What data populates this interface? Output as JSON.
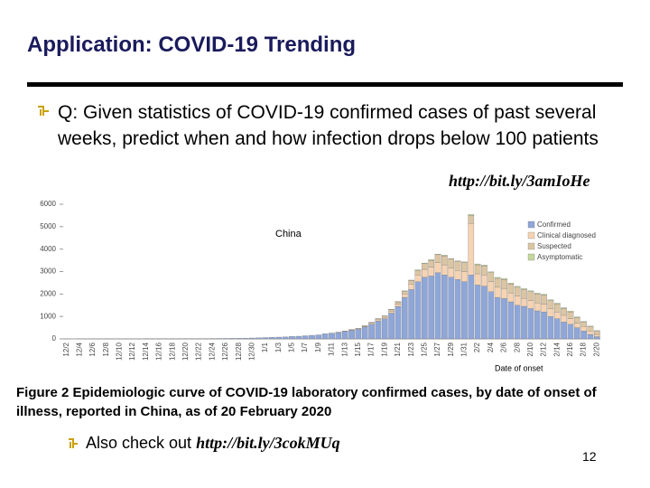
{
  "slide": {
    "title": "Application: COVID-19 Trending",
    "bullet": "Q: Given statistics of COVID-19 confirmed cases of past several weeks, predict when and how infection drops below 100 patients",
    "link1": "http://bit.ly/3amIoHe",
    "caption": "Figure 2 Epidemiologic curve of COVID-19 laboratory confirmed cases, by date of onset of illness, reported in China, as of 20 February 2020",
    "check_prefix": "Also check out",
    "link2": "http://bit.ly/3cokMUq",
    "page_number": "12"
  },
  "chart_data": {
    "type": "bar",
    "stacked": true,
    "title": "China",
    "x_label": "Date of onset",
    "legend": "upper right",
    "categories": [
      "12/2",
      null,
      "12/4",
      null,
      "12/6",
      null,
      "12/8",
      null,
      "12/10",
      null,
      "12/12",
      null,
      "12/14",
      null,
      "12/16",
      null,
      "12/18",
      null,
      "12/20",
      null,
      "12/22",
      null,
      "12/24",
      null,
      "12/26",
      null,
      "12/28",
      null,
      "12/30",
      null,
      "1/1",
      null,
      "1/3",
      null,
      "1/5",
      null,
      "1/7",
      null,
      "1/9",
      null,
      "1/11",
      null,
      "1/13",
      null,
      "1/15",
      null,
      "1/17",
      null,
      "1/19",
      null,
      "1/21",
      null,
      "1/23",
      null,
      "1/25",
      null,
      "1/27",
      null,
      "1/29",
      null,
      "1/31",
      null,
      "2/2",
      null,
      "2/4",
      null,
      "2/6",
      null,
      "2/8",
      null,
      "2/10",
      null,
      "2/12",
      null,
      "2/14",
      null,
      "2/16",
      null,
      "2/18",
      null,
      "2/20"
    ],
    "series": [
      {
        "name": "Confirmed",
        "color": "#8ea6d8",
        "values": [
          1,
          0,
          2,
          1,
          3,
          2,
          4,
          3,
          5,
          4,
          6,
          5,
          8,
          7,
          10,
          9,
          12,
          11,
          14,
          13,
          16,
          15,
          18,
          20,
          22,
          25,
          28,
          32,
          40,
          50,
          60,
          70,
          80,
          90,
          110,
          120,
          140,
          160,
          180,
          230,
          250,
          280,
          330,
          380,
          430,
          530,
          650,
          800,
          900,
          1150,
          1450,
          1850,
          2200,
          2550,
          2750,
          2800,
          2950,
          2850,
          2750,
          2650,
          2550,
          2850,
          2400,
          2350,
          2100,
          1850,
          1800,
          1650,
          1500,
          1450,
          1350,
          1250,
          1200,
          1000,
          900,
          750,
          650,
          500,
          350,
          200,
          100
        ]
      },
      {
        "name": "Clinical diagnosed",
        "color": "#f6d3b3",
        "values": [
          0,
          0,
          0,
          0,
          0,
          0,
          0,
          0,
          0,
          0,
          0,
          0,
          0,
          0,
          0,
          0,
          0,
          0,
          0,
          0,
          0,
          0,
          0,
          0,
          0,
          0,
          0,
          0,
          0,
          0,
          0,
          0,
          0,
          0,
          0,
          0,
          0,
          0,
          0,
          0,
          0,
          10,
          10,
          20,
          20,
          30,
          40,
          50,
          60,
          80,
          100,
          150,
          250,
          300,
          350,
          400,
          450,
          450,
          400,
          400,
          450,
          2300,
          500,
          500,
          450,
          450,
          450,
          400,
          400,
          350,
          350,
          350,
          350,
          350,
          300,
          300,
          250,
          200,
          200,
          150,
          100
        ]
      },
      {
        "name": "Suspected",
        "color": "#dcc5a2",
        "values": [
          0,
          0,
          0,
          0,
          0,
          0,
          0,
          0,
          0,
          0,
          0,
          0,
          0,
          0,
          0,
          0,
          0,
          0,
          0,
          0,
          0,
          0,
          0,
          0,
          0,
          0,
          0,
          0,
          0,
          0,
          0,
          0,
          0,
          0,
          0,
          0,
          0,
          0,
          0,
          0,
          10,
          10,
          10,
          20,
          20,
          30,
          40,
          50,
          60,
          80,
          100,
          120,
          150,
          200,
          250,
          300,
          350,
          400,
          400,
          400,
          400,
          350,
          400,
          400,
          400,
          400,
          400,
          400,
          400,
          400,
          400,
          400,
          400,
          350,
          350,
          300,
          300,
          250,
          200,
          200,
          150
        ]
      },
      {
        "name": "Asymptomatic",
        "color": "#c4d79c",
        "values": [
          0,
          0,
          0,
          0,
          0,
          0,
          0,
          0,
          0,
          0,
          0,
          0,
          0,
          0,
          0,
          0,
          0,
          0,
          0,
          0,
          0,
          0,
          0,
          0,
          0,
          0,
          0,
          0,
          0,
          0,
          0,
          0,
          0,
          0,
          0,
          0,
          0,
          0,
          0,
          0,
          0,
          0,
          0,
          0,
          0,
          5,
          5,
          5,
          10,
          10,
          10,
          20,
          20,
          30,
          30,
          30,
          30,
          30,
          30,
          30,
          30,
          40,
          40,
          40,
          40,
          40,
          40,
          40,
          40,
          40,
          40,
          40,
          40,
          40,
          40,
          40,
          40,
          30,
          30,
          20,
          20
        ]
      }
    ],
    "ylim": [
      0,
      6000
    ],
    "yticks": [
      0,
      1000,
      2000,
      3000,
      4000,
      5000,
      6000
    ]
  }
}
